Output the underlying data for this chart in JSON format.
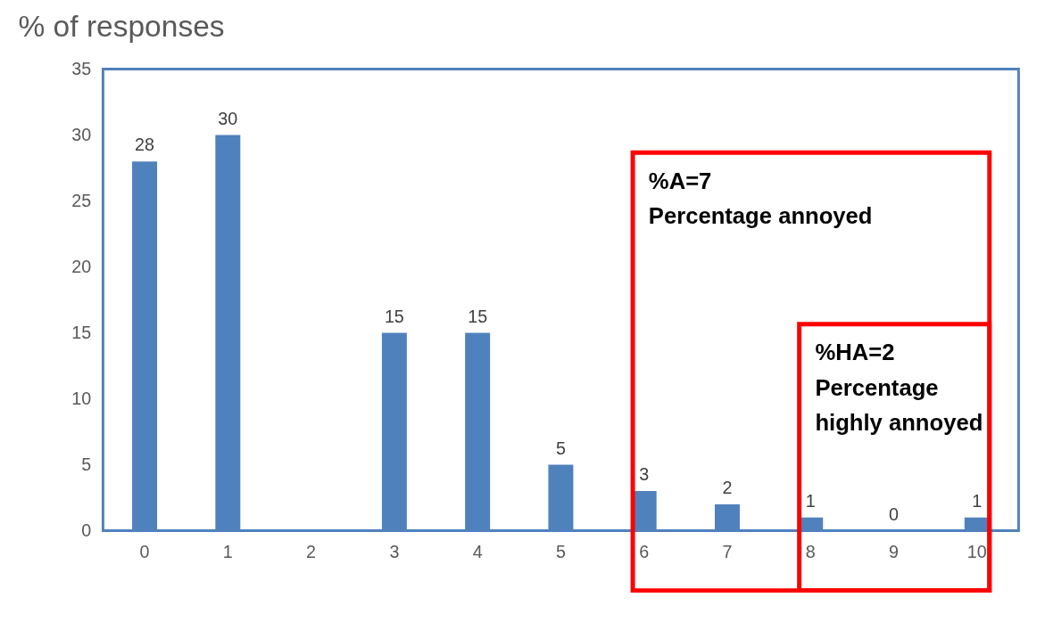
{
  "chart_data": {
    "type": "bar",
    "title": "% of responses",
    "categories": [
      "0",
      "1",
      "2",
      "3",
      "4",
      "5",
      "6",
      "7",
      "8",
      "9",
      "10"
    ],
    "values": [
      28,
      30,
      0,
      15,
      15,
      5,
      3,
      2,
      1,
      0,
      1
    ],
    "value_labels": [
      "28",
      "30",
      null,
      "15",
      "15",
      "5",
      "3",
      "2",
      "1",
      "0",
      "1"
    ],
    "color": "#4f81bd",
    "ylim": [
      0,
      35
    ],
    "yticks": [
      0,
      5,
      10,
      15,
      20,
      25,
      30,
      35
    ],
    "grid": false,
    "annotations": [
      "%A=7\nPercentage annoyed",
      "%HA=2\nPercentage\nhighly annoyed"
    ]
  }
}
